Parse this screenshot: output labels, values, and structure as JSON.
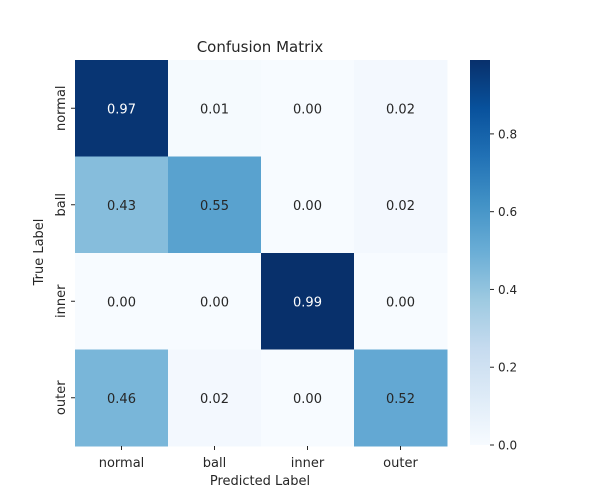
{
  "chart_data": {
    "type": "heatmap",
    "title": "Confusion Matrix",
    "xlabel": "Predicted Label",
    "ylabel": "True Label",
    "x_categories": [
      "normal",
      "ball",
      "inner",
      "outer"
    ],
    "y_categories": [
      "normal",
      "ball",
      "inner",
      "outer"
    ],
    "values": [
      [
        0.97,
        0.01,
        0.0,
        0.02
      ],
      [
        0.43,
        0.55,
        0.0,
        0.02
      ],
      [
        0.0,
        0.0,
        0.99,
        0.0
      ],
      [
        0.46,
        0.02,
        0.0,
        0.52
      ]
    ],
    "value_format": "0.00",
    "colormap": "Blues",
    "colormap_stops": [
      "#f7fbff",
      "#deebf7",
      "#c6dbef",
      "#9ecae1",
      "#6baed6",
      "#4292c6",
      "#2171b5",
      "#08519c",
      "#08306b"
    ],
    "colorbar": {
      "range": [
        0.0,
        0.99
      ],
      "ticks": [
        0.0,
        0.2,
        0.4,
        0.6,
        0.8
      ],
      "tick_labels": [
        "0.0",
        "0.2",
        "0.4",
        "0.6",
        "0.8"
      ]
    },
    "grid": false,
    "legend": "colorbar-right"
  }
}
